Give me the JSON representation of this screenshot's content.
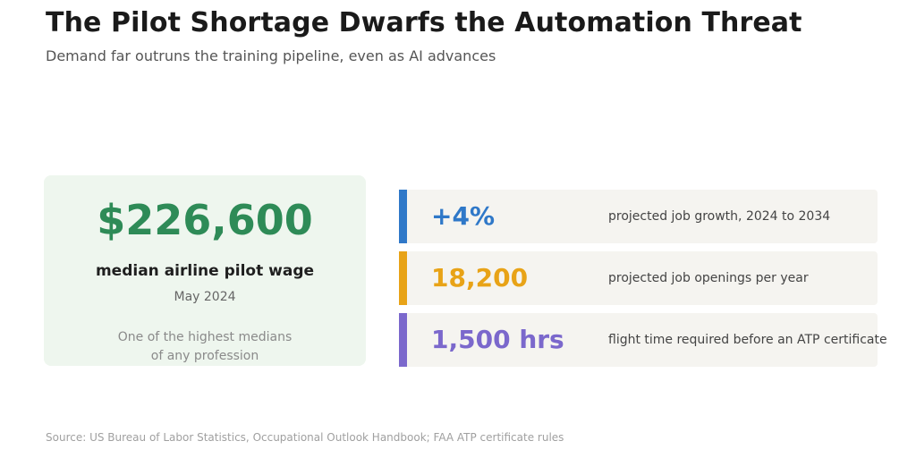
{
  "header": {
    "title": "The Pilot Shortage Dwarfs the Automation Threat",
    "subtitle": "Demand far outruns the training pipeline, even as AI advances"
  },
  "hero": {
    "value": "$226,600",
    "label": "median airline pilot wage",
    "date": "May 2024",
    "note_line1": "One of the highest medians",
    "note_line2": "of any profession",
    "color": "#2e8b57",
    "background": "#eef6ee"
  },
  "stats": [
    {
      "value": "+4%",
      "description": "projected job growth, 2024 to 2034",
      "color": "#2f78c8"
    },
    {
      "value": "18,200",
      "description": "projected job openings per year",
      "color": "#e8a317"
    },
    {
      "value": "1,500 hrs",
      "description": "flight time required before an ATP certificate",
      "color": "#7b68cc"
    }
  ],
  "source": "Source: US Bureau of Labor Statistics, Occupational Outlook Handbook; FAA ATP certificate rules",
  "chart_data": {
    "type": "table",
    "title": "The Pilot Shortage Dwarfs the Automation Threat",
    "subtitle": "Demand far outruns the training pipeline, even as AI advances",
    "rows": [
      {
        "metric": "median airline pilot wage",
        "value": 226600,
        "display": "$226,600",
        "period": "May 2024"
      },
      {
        "metric": "projected job growth, 2024 to 2034",
        "value": 4,
        "display": "+4%"
      },
      {
        "metric": "projected job openings per year",
        "value": 18200,
        "display": "18,200"
      },
      {
        "metric": "flight time required before an ATP certificate",
        "value": 1500,
        "display": "1,500 hrs"
      }
    ]
  }
}
